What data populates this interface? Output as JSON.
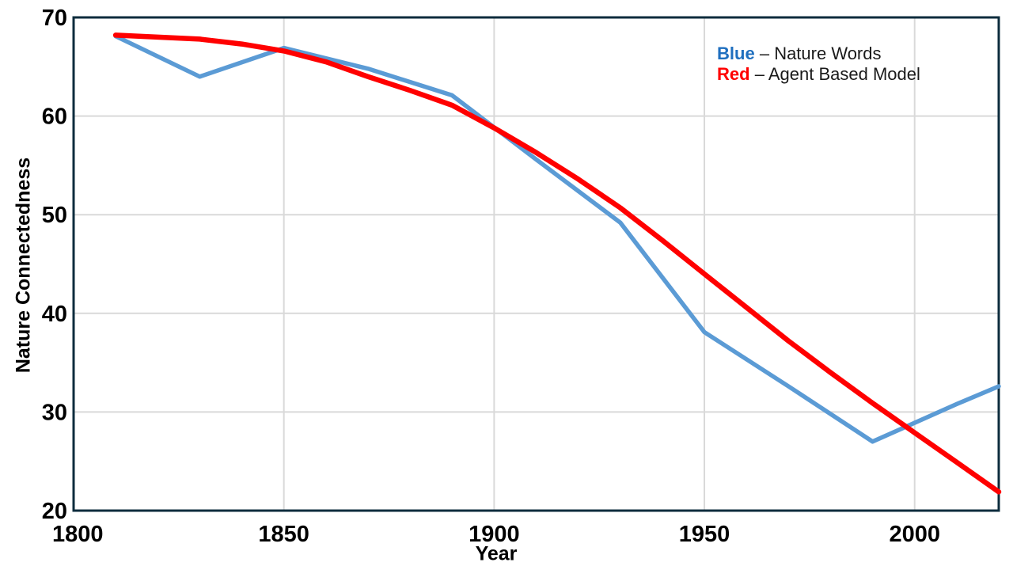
{
  "page": {
    "background": "#FFFFFF"
  },
  "chart_data": {
    "type": "line",
    "title": "",
    "xlabel": "Year",
    "ylabel": "Nature Connectedness",
    "x_range": [
      1800,
      2020
    ],
    "y_range": [
      20,
      70
    ],
    "x_ticks": [
      1800,
      1850,
      1900,
      1950,
      2000
    ],
    "y_ticks": [
      20,
      30,
      40,
      50,
      60,
      70
    ],
    "grid": true,
    "legend_position": "top-right",
    "colors": {
      "axis_border": "#0D2C3D",
      "gridline": "#D9D9D9",
      "tick_text": "#000000",
      "blue_line": "#5B9BD5",
      "red_line": "#FF0000",
      "legend_blue_key": "#1F6FBF",
      "legend_red_key": "#FF0000"
    },
    "series": [
      {
        "name": "Nature Words",
        "color": "#5B9BD5",
        "stroke_width": 5.5,
        "x": [
          1810,
          1830,
          1850,
          1870,
          1890,
          1910,
          1930,
          1950,
          1970,
          1990,
          2010,
          2020
        ],
        "y": [
          68.1,
          64.0,
          66.9,
          64.8,
          62.1,
          55.6,
          49.2,
          38.1,
          32.6,
          27.0,
          30.8,
          32.6
        ]
      },
      {
        "name": "Agent Based Model",
        "color": "#FF0000",
        "stroke_width": 6.5,
        "x": [
          1810,
          1820,
          1830,
          1840,
          1850,
          1860,
          1870,
          1880,
          1890,
          1900,
          1910,
          1920,
          1930,
          1940,
          1950,
          1960,
          1970,
          1980,
          1990,
          2000,
          2010,
          2020
        ],
        "y": [
          68.2,
          68.0,
          67.8,
          67.3,
          66.6,
          65.5,
          64.0,
          62.6,
          61.1,
          58.8,
          56.3,
          53.6,
          50.7,
          47.4,
          44.0,
          40.6,
          37.2,
          34.0,
          30.9,
          27.9,
          24.9,
          21.9
        ]
      }
    ],
    "legend": {
      "items": [
        {
          "key": "Blue",
          "key_color": "#1F6FBF",
          "separator": "–",
          "label": "Nature Words"
        },
        {
          "key": "Red",
          "key_color": "#FF0000",
          "separator": "–",
          "label": "Agent Based Model"
        }
      ]
    }
  }
}
